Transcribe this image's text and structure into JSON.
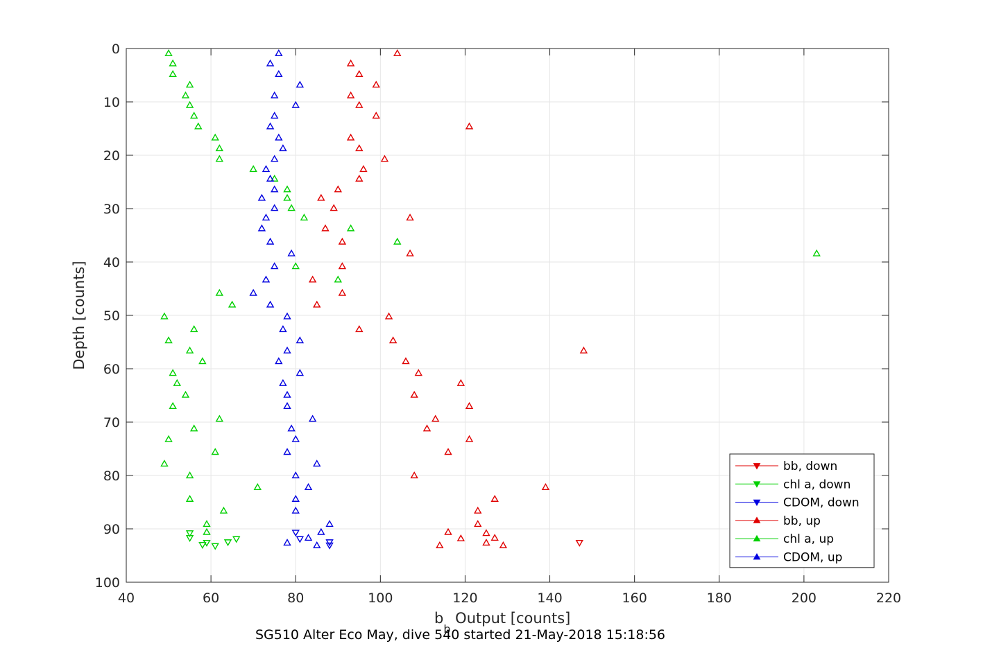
{
  "caption": "SG510 Alter Eco May, dive 540 started 21-May-2018 15:18:56",
  "chart_data": {
    "type": "scatter",
    "xlabel_main": "b",
    "xlabel_sub": "b",
    "xlabel_rest": " Output [counts]",
    "ylabel": "Depth [counts]",
    "xlim": [
      40,
      220
    ],
    "ylim": [
      0,
      100
    ],
    "y_reversed": true,
    "grid": true,
    "legend_position": "bottom-right",
    "xticks": [
      "40",
      "60",
      "80",
      "100",
      "120",
      "140",
      "160",
      "180",
      "200",
      "220"
    ],
    "yticks": [
      "0",
      "10",
      "20",
      "30",
      "40",
      "50",
      "60",
      "70",
      "80",
      "90",
      "100"
    ],
    "series": [
      {
        "name": "bb, down",
        "color": "#e00000",
        "marker": "triangle-down",
        "points": [
          [
            147,
            92.6
          ]
        ]
      },
      {
        "name": "chl a, down",
        "color": "#00d000",
        "marker": "triangle-down",
        "points": [
          [
            55,
            90.8
          ],
          [
            55,
            91.7
          ],
          [
            58,
            93.0
          ],
          [
            59,
            92.6
          ],
          [
            64,
            92.5
          ],
          [
            66,
            91.9
          ],
          [
            61,
            93.2
          ]
        ]
      },
      {
        "name": "CDOM, down",
        "color": "#0000e0",
        "marker": "triangle-down",
        "points": [
          [
            80,
            90.7
          ],
          [
            81,
            91.9
          ],
          [
            88,
            92.5
          ],
          [
            88,
            93.1
          ]
        ]
      },
      {
        "name": "bb, up",
        "color": "#e00000",
        "marker": "triangle-up",
        "points": [
          [
            104,
            0.9
          ],
          [
            93,
            2.8
          ],
          [
            95,
            4.8
          ],
          [
            99,
            6.8
          ],
          [
            93,
            8.8
          ],
          [
            95,
            10.6
          ],
          [
            99,
            12.6
          ],
          [
            121,
            14.6
          ],
          [
            93,
            16.7
          ],
          [
            95,
            18.7
          ],
          [
            101,
            20.7
          ],
          [
            96,
            22.6
          ],
          [
            95,
            24.4
          ],
          [
            90,
            26.4
          ],
          [
            86,
            28.0
          ],
          [
            89,
            29.9
          ],
          [
            107,
            31.7
          ],
          [
            87,
            33.7
          ],
          [
            91,
            36.2
          ],
          [
            107,
            38.4
          ],
          [
            91,
            40.8
          ],
          [
            84,
            43.3
          ],
          [
            91,
            45.8
          ],
          [
            85,
            48.0
          ],
          [
            102,
            50.2
          ],
          [
            95,
            52.6
          ],
          [
            103,
            54.7
          ],
          [
            148,
            56.6
          ],
          [
            106,
            58.6
          ],
          [
            109,
            60.8
          ],
          [
            119,
            62.7
          ],
          [
            108,
            64.9
          ],
          [
            121,
            67.0
          ],
          [
            113,
            69.4
          ],
          [
            111,
            71.2
          ],
          [
            121,
            73.2
          ],
          [
            116,
            75.6
          ],
          [
            108,
            80.0
          ],
          [
            139,
            82.2
          ],
          [
            127,
            84.4
          ],
          [
            123,
            86.6
          ],
          [
            123,
            89.1
          ],
          [
            116,
            90.6
          ],
          [
            125,
            90.8
          ],
          [
            119,
            91.8
          ],
          [
            127,
            91.7
          ],
          [
            125,
            92.6
          ],
          [
            129,
            93.1
          ],
          [
            114,
            93.1
          ]
        ]
      },
      {
        "name": "chl a, up",
        "color": "#00d000",
        "marker": "triangle-up",
        "points": [
          [
            50,
            0.9
          ],
          [
            51,
            2.8
          ],
          [
            51,
            4.8
          ],
          [
            55,
            6.8
          ],
          [
            54,
            8.8
          ],
          [
            55,
            10.6
          ],
          [
            56,
            12.6
          ],
          [
            57,
            14.6
          ],
          [
            61,
            16.7
          ],
          [
            62,
            18.7
          ],
          [
            62,
            20.7
          ],
          [
            70,
            22.6
          ],
          [
            75,
            24.4
          ],
          [
            78,
            26.4
          ],
          [
            78,
            28.0
          ],
          [
            79,
            29.9
          ],
          [
            82,
            31.7
          ],
          [
            93,
            33.7
          ],
          [
            104,
            36.2
          ],
          [
            203,
            38.4
          ],
          [
            80,
            40.8
          ],
          [
            90,
            43.3
          ],
          [
            62,
            45.8
          ],
          [
            65,
            48.0
          ],
          [
            49,
            50.2
          ],
          [
            56,
            52.6
          ],
          [
            50,
            54.7
          ],
          [
            55,
            56.6
          ],
          [
            58,
            58.6
          ],
          [
            51,
            60.8
          ],
          [
            52,
            62.7
          ],
          [
            54,
            64.9
          ],
          [
            51,
            67.0
          ],
          [
            62,
            69.4
          ],
          [
            56,
            71.2
          ],
          [
            50,
            73.2
          ],
          [
            61,
            75.6
          ],
          [
            49,
            77.8
          ],
          [
            55,
            80.0
          ],
          [
            71,
            82.2
          ],
          [
            55,
            84.4
          ],
          [
            63,
            86.6
          ],
          [
            59,
            89.1
          ],
          [
            59,
            90.6
          ]
        ]
      },
      {
        "name": "CDOM, up",
        "color": "#0000e0",
        "marker": "triangle-up",
        "points": [
          [
            76,
            0.9
          ],
          [
            74,
            2.8
          ],
          [
            76,
            4.8
          ],
          [
            81,
            6.8
          ],
          [
            75,
            8.8
          ],
          [
            80,
            10.6
          ],
          [
            75,
            12.6
          ],
          [
            74,
            14.6
          ],
          [
            76,
            16.7
          ],
          [
            77,
            18.7
          ],
          [
            75,
            20.7
          ],
          [
            73,
            22.6
          ],
          [
            74,
            24.4
          ],
          [
            75,
            26.4
          ],
          [
            72,
            28.0
          ],
          [
            75,
            29.9
          ],
          [
            73,
            31.7
          ],
          [
            72,
            33.7
          ],
          [
            74,
            36.2
          ],
          [
            79,
            38.4
          ],
          [
            75,
            40.8
          ],
          [
            73,
            43.3
          ],
          [
            70,
            45.8
          ],
          [
            74,
            48.0
          ],
          [
            78,
            50.2
          ],
          [
            77,
            52.6
          ],
          [
            81,
            54.7
          ],
          [
            78,
            56.6
          ],
          [
            76,
            58.6
          ],
          [
            81,
            60.8
          ],
          [
            77,
            62.7
          ],
          [
            78,
            64.9
          ],
          [
            78,
            67.0
          ],
          [
            84,
            69.4
          ],
          [
            79,
            71.2
          ],
          [
            80,
            73.2
          ],
          [
            78,
            75.6
          ],
          [
            85,
            77.8
          ],
          [
            80,
            80.0
          ],
          [
            83,
            82.2
          ],
          [
            80,
            84.4
          ],
          [
            80,
            86.6
          ],
          [
            88,
            89.1
          ],
          [
            86,
            90.6
          ],
          [
            83,
            91.7
          ],
          [
            78,
            92.6
          ],
          [
            85,
            93.1
          ]
        ]
      }
    ]
  }
}
